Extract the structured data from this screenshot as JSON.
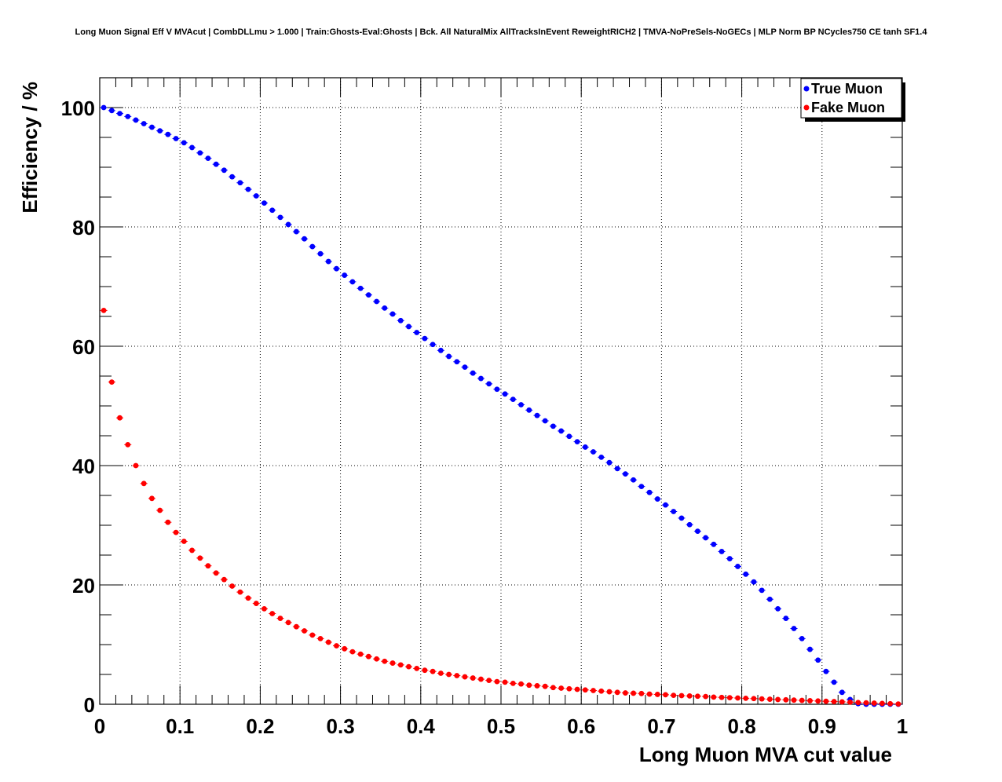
{
  "chart_data": {
    "type": "scatter",
    "title": "Long Muon Signal Eff V MVAcut | CombDLLmu > 1.000 | Train:Ghosts-Eval:Ghosts | Bck. All NaturalMix AllTracksInEvent ReweightRICH2 | TMVA-NoPreSels-NoGECs | MLP Norm BP NCycles750 CE tanh SF1.4",
    "xlabel": "Long Muon MVA cut value",
    "ylabel": "Efficiency / %",
    "xlim": [
      0,
      1
    ],
    "ylim": [
      0,
      105
    ],
    "x_ticks": [
      "0",
      "0.1",
      "0.2",
      "0.3",
      "0.4",
      "0.5",
      "0.6",
      "0.7",
      "0.8",
      "0.9",
      "1"
    ],
    "y_ticks": [
      "0",
      "20",
      "40",
      "60",
      "80",
      "100"
    ],
    "grid": true,
    "legend_position": "top-right",
    "series": [
      {
        "name": "True Muon",
        "color": "#0000ff",
        "x": [
          0.005,
          0.015,
          0.025,
          0.035,
          0.045,
          0.055,
          0.065,
          0.075,
          0.085,
          0.095,
          0.105,
          0.115,
          0.125,
          0.135,
          0.145,
          0.155,
          0.165,
          0.175,
          0.185,
          0.195,
          0.205,
          0.215,
          0.225,
          0.235,
          0.245,
          0.255,
          0.265,
          0.275,
          0.285,
          0.295,
          0.305,
          0.315,
          0.325,
          0.335,
          0.345,
          0.355,
          0.365,
          0.375,
          0.385,
          0.395,
          0.405,
          0.415,
          0.425,
          0.435,
          0.445,
          0.455,
          0.465,
          0.475,
          0.485,
          0.495,
          0.505,
          0.515,
          0.525,
          0.535,
          0.545,
          0.555,
          0.565,
          0.575,
          0.585,
          0.595,
          0.605,
          0.615,
          0.625,
          0.635,
          0.645,
          0.655,
          0.665,
          0.675,
          0.685,
          0.695,
          0.705,
          0.715,
          0.725,
          0.735,
          0.745,
          0.755,
          0.765,
          0.775,
          0.785,
          0.795,
          0.805,
          0.815,
          0.825,
          0.835,
          0.845,
          0.855,
          0.865,
          0.875,
          0.885,
          0.895,
          0.905,
          0.915,
          0.925,
          0.935,
          0.945,
          0.955,
          0.965,
          0.975,
          0.985,
          0.995
        ],
        "values": [
          100.0,
          99.5,
          99.0,
          98.5,
          97.9,
          97.3,
          96.7,
          96.1,
          95.5,
          94.8,
          94.1,
          93.3,
          92.4,
          91.5,
          90.5,
          89.5,
          88.4,
          87.4,
          86.3,
          85.2,
          84.0,
          82.8,
          81.6,
          80.4,
          79.2,
          78.0,
          76.7,
          75.5,
          74.2,
          73.0,
          71.9,
          70.8,
          69.7,
          68.6,
          67.5,
          66.4,
          65.4,
          64.3,
          63.3,
          62.3,
          61.3,
          60.3,
          59.3,
          58.3,
          57.4,
          56.5,
          55.5,
          54.6,
          53.7,
          52.8,
          52.0,
          51.1,
          50.2,
          49.3,
          48.4,
          47.5,
          46.6,
          45.8,
          44.9,
          44.0,
          43.1,
          42.3,
          41.4,
          40.5,
          39.5,
          38.6,
          37.6,
          36.5,
          35.5,
          34.4,
          33.4,
          32.3,
          31.2,
          30.1,
          29.0,
          27.9,
          26.8,
          25.6,
          24.4,
          23.1,
          21.8,
          20.5,
          19.1,
          17.6,
          16.0,
          14.4,
          12.7,
          11.0,
          9.2,
          7.4,
          5.5,
          3.7,
          2.0,
          0.8,
          0.1,
          0.0,
          0.0,
          0.0,
          0.0,
          0.0
        ]
      },
      {
        "name": "Fake Muon",
        "color": "#ff0000",
        "x": [
          0.005,
          0.015,
          0.025,
          0.035,
          0.045,
          0.055,
          0.065,
          0.075,
          0.085,
          0.095,
          0.105,
          0.115,
          0.125,
          0.135,
          0.145,
          0.155,
          0.165,
          0.175,
          0.185,
          0.195,
          0.205,
          0.215,
          0.225,
          0.235,
          0.245,
          0.255,
          0.265,
          0.275,
          0.285,
          0.295,
          0.305,
          0.315,
          0.325,
          0.335,
          0.345,
          0.355,
          0.365,
          0.375,
          0.385,
          0.395,
          0.405,
          0.415,
          0.425,
          0.435,
          0.445,
          0.455,
          0.465,
          0.475,
          0.485,
          0.495,
          0.505,
          0.515,
          0.525,
          0.535,
          0.545,
          0.555,
          0.565,
          0.575,
          0.585,
          0.595,
          0.605,
          0.615,
          0.625,
          0.635,
          0.645,
          0.655,
          0.665,
          0.675,
          0.685,
          0.695,
          0.705,
          0.715,
          0.725,
          0.735,
          0.745,
          0.755,
          0.765,
          0.775,
          0.785,
          0.795,
          0.805,
          0.815,
          0.825,
          0.835,
          0.845,
          0.855,
          0.865,
          0.875,
          0.885,
          0.895,
          0.905,
          0.915,
          0.925,
          0.935,
          0.945,
          0.955,
          0.965,
          0.975,
          0.985,
          0.995
        ],
        "values": [
          66.0,
          54.0,
          48.0,
          43.5,
          40.0,
          37.0,
          34.5,
          32.5,
          30.5,
          28.8,
          27.3,
          25.8,
          24.5,
          23.2,
          22.0,
          20.9,
          19.8,
          18.8,
          17.8,
          16.9,
          16.0,
          15.2,
          14.4,
          13.7,
          13.0,
          12.3,
          11.6,
          11.0,
          10.4,
          9.8,
          9.3,
          8.8,
          8.4,
          8.0,
          7.6,
          7.2,
          6.9,
          6.6,
          6.3,
          6.0,
          5.7,
          5.5,
          5.2,
          5.0,
          4.8,
          4.6,
          4.4,
          4.2,
          4.0,
          3.8,
          3.7,
          3.5,
          3.4,
          3.2,
          3.1,
          3.0,
          2.8,
          2.7,
          2.6,
          2.5,
          2.4,
          2.3,
          2.2,
          2.1,
          2.0,
          1.9,
          1.85,
          1.8,
          1.7,
          1.65,
          1.6,
          1.5,
          1.45,
          1.4,
          1.35,
          1.3,
          1.2,
          1.15,
          1.1,
          1.05,
          1.0,
          0.95,
          0.9,
          0.85,
          0.8,
          0.75,
          0.7,
          0.65,
          0.6,
          0.55,
          0.5,
          0.45,
          0.4,
          0.35,
          0.3,
          0.25,
          0.2,
          0.15,
          0.1,
          0.05
        ]
      }
    ]
  }
}
